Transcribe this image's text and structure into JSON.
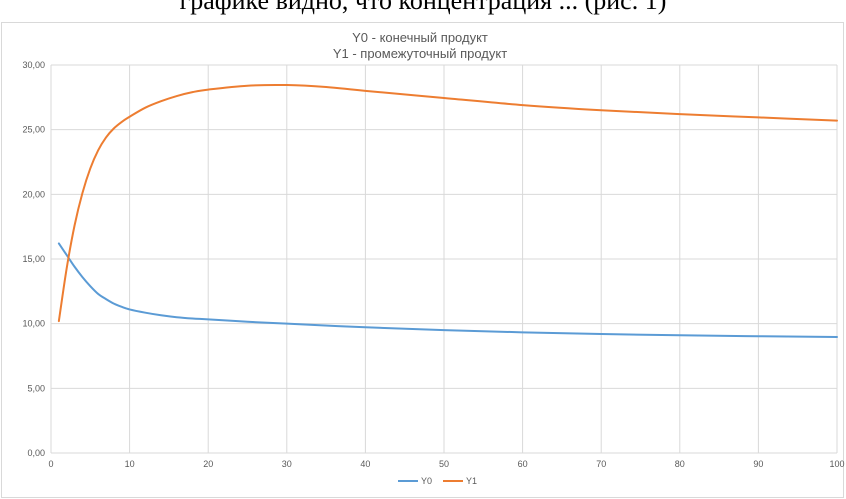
{
  "page": {
    "top_text": "графике видно, что концентрация ... (рис. 1)"
  },
  "chart_data": {
    "type": "line",
    "title_lines": [
      "Y0 - конечный продукт",
      "Y1 - промежуточный продукт"
    ],
    "xlabel": "",
    "ylabel": "",
    "xlim": [
      0,
      100
    ],
    "ylim": [
      0,
      30
    ],
    "x_ticks": [
      "0",
      "10",
      "20",
      "30",
      "40",
      "50",
      "60",
      "70",
      "80",
      "90",
      "100"
    ],
    "y_ticks": [
      "0,00",
      "5,00",
      "10,00",
      "15,00",
      "20,00",
      "25,00",
      "30,00"
    ],
    "grid": true,
    "legend_position": "bottom",
    "colors": {
      "Y0": "#5b9bd5",
      "Y1": "#ed7d31",
      "grid": "#d9d9d9",
      "text": "#595959"
    },
    "series": [
      {
        "name": "Y0",
        "x": [
          1,
          2,
          3,
          4,
          5,
          6,
          7,
          8,
          9,
          10,
          12,
          14,
          16,
          18,
          20,
          25,
          30,
          40,
          50,
          60,
          70,
          80,
          90,
          100
        ],
        "values": [
          16.2,
          15.3,
          14.4,
          13.6,
          12.9,
          12.3,
          11.9,
          11.55,
          11.3,
          11.1,
          10.85,
          10.65,
          10.5,
          10.4,
          10.33,
          10.15,
          10.0,
          9.72,
          9.5,
          9.33,
          9.2,
          9.1,
          9.03,
          8.97
        ]
      },
      {
        "name": "Y1",
        "x": [
          1,
          2,
          3,
          4,
          5,
          6,
          7,
          8,
          9,
          10,
          12,
          14,
          16,
          18,
          20,
          25,
          30,
          35,
          40,
          50,
          60,
          70,
          80,
          90,
          100
        ],
        "values": [
          10.2,
          14.3,
          17.6,
          20.1,
          22.0,
          23.4,
          24.4,
          25.1,
          25.6,
          26.0,
          26.7,
          27.2,
          27.6,
          27.9,
          28.1,
          28.4,
          28.45,
          28.3,
          28.0,
          27.45,
          26.9,
          26.5,
          26.2,
          25.95,
          25.7
        ]
      }
    ]
  }
}
